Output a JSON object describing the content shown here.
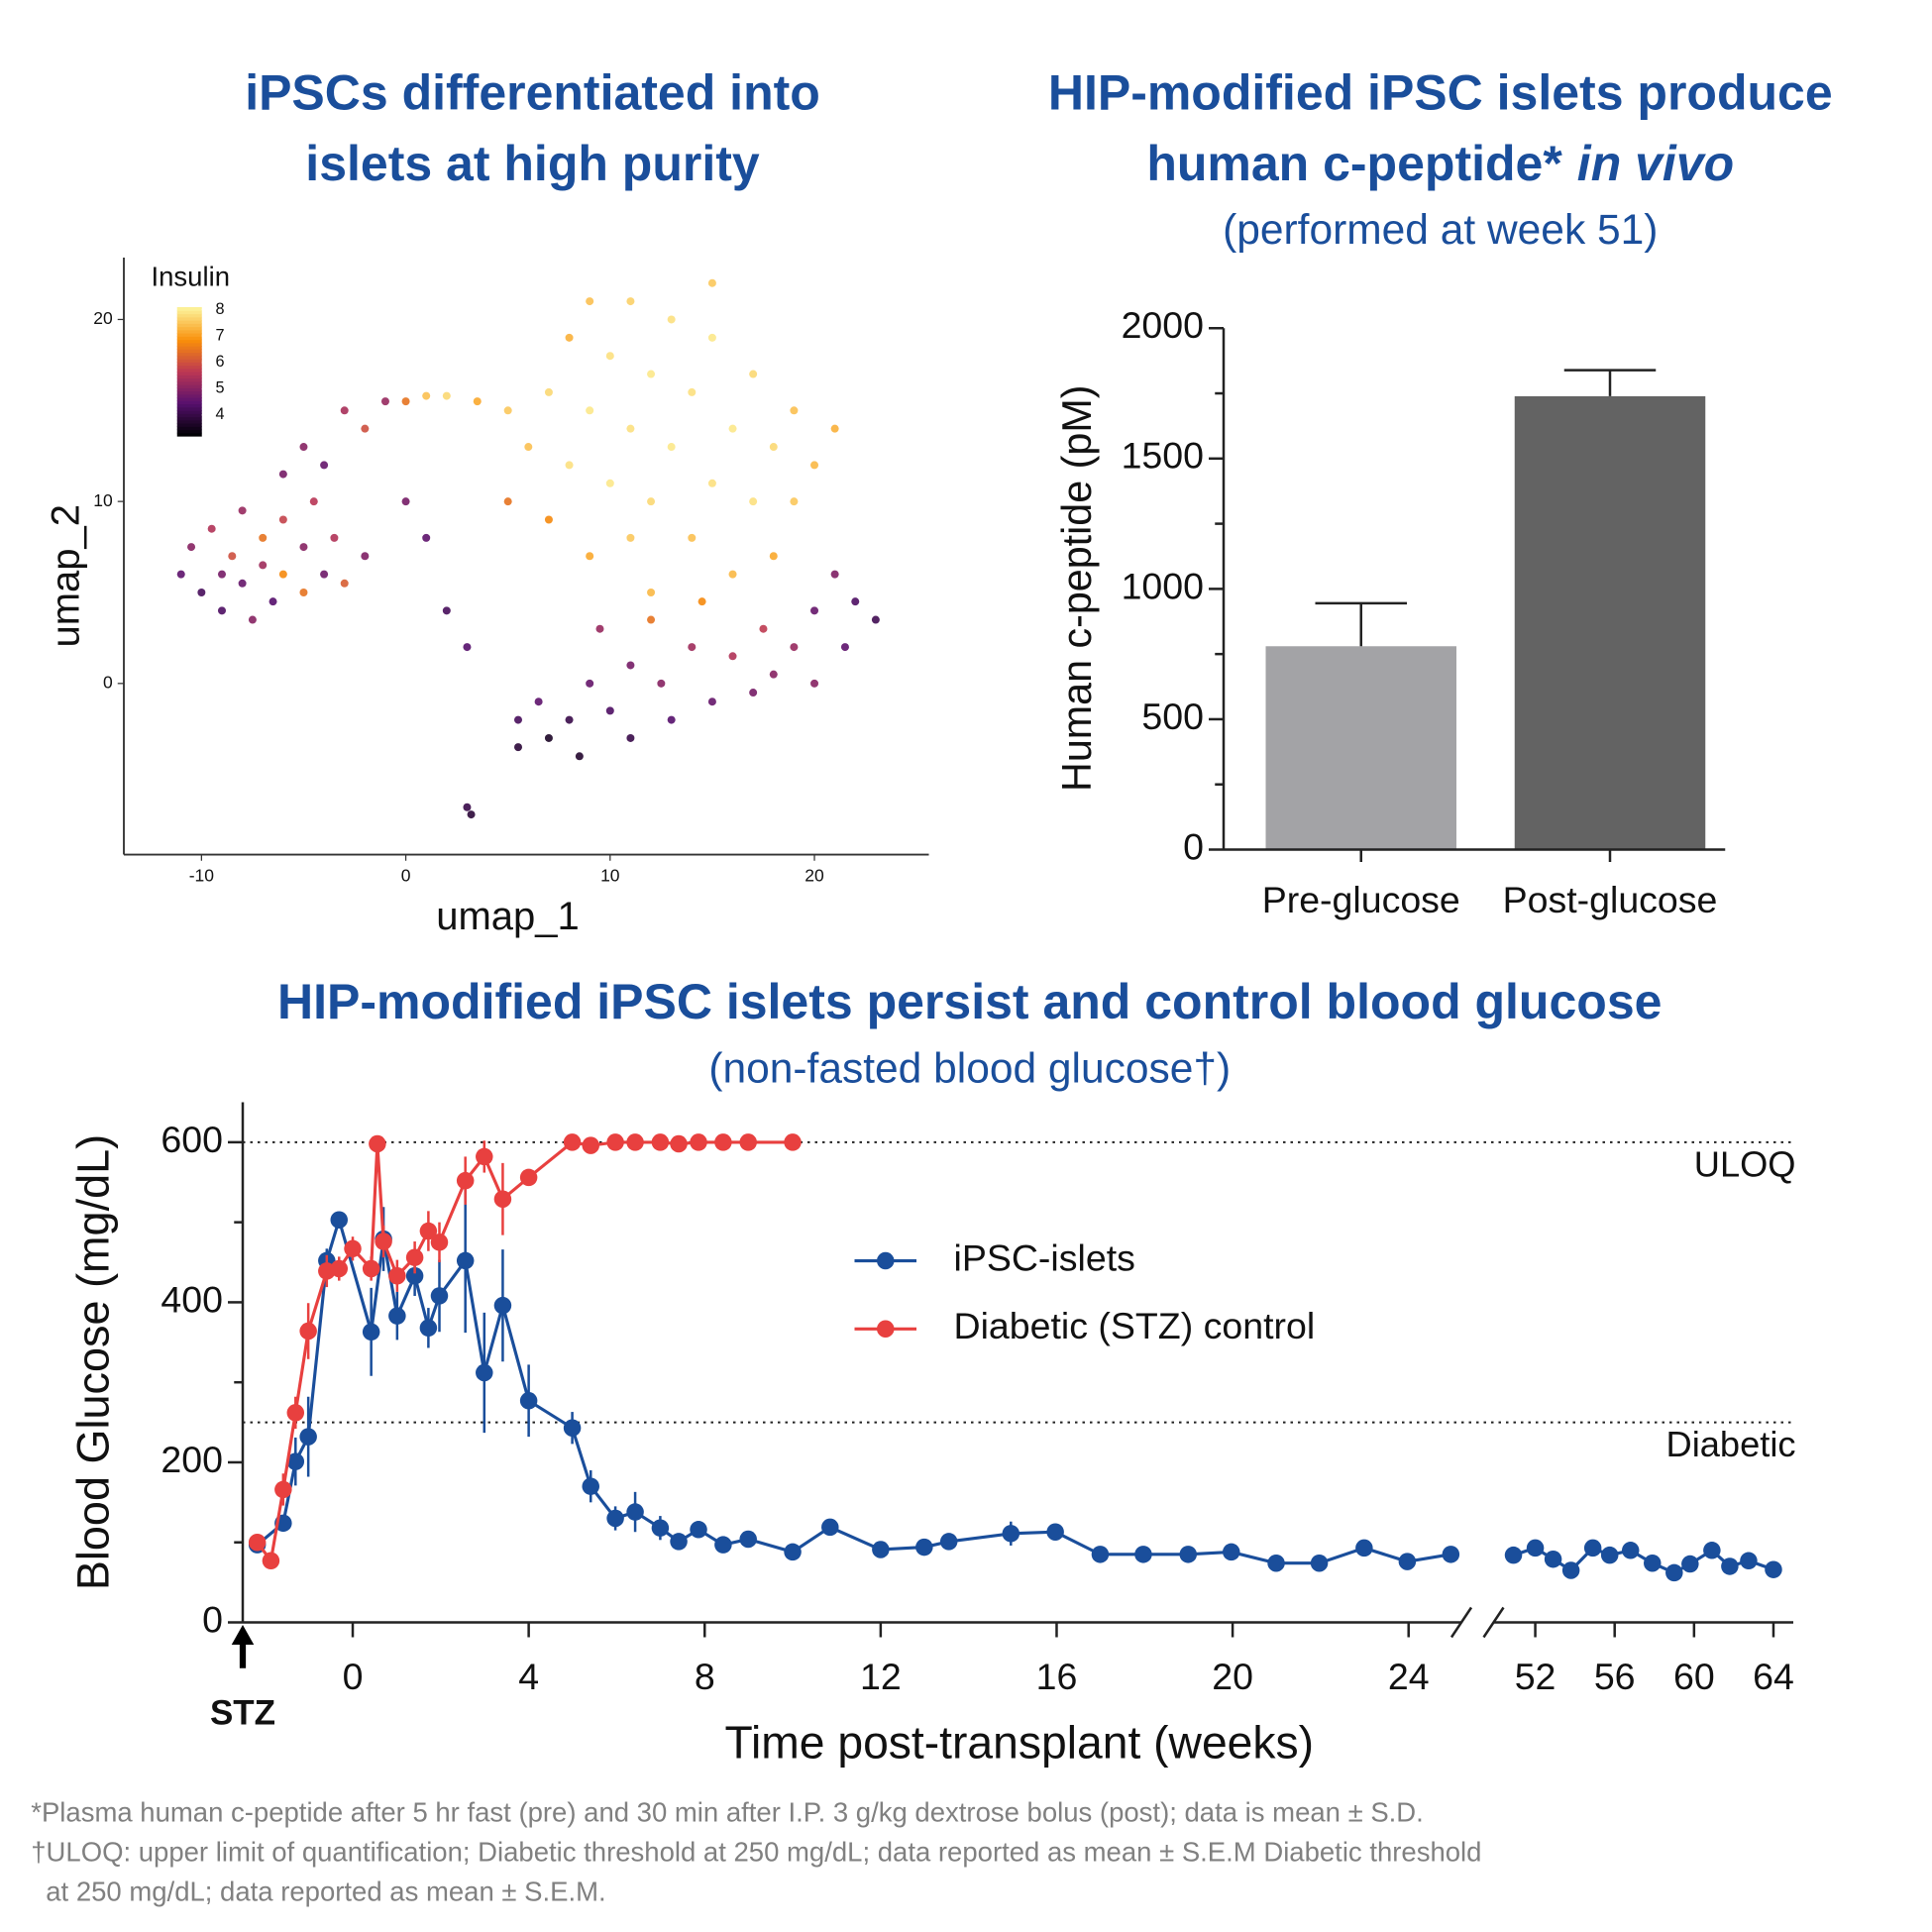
{
  "chart_data": [
    {
      "type": "scatter",
      "title": [
        "iPSCs differentiated into",
        "islets at high purity"
      ],
      "x_label": "umap_1",
      "y_label": "umap_2",
      "xlim": [
        -13.8,
        25.6
      ],
      "ylim": [
        -9.4,
        23.4
      ],
      "xticks": [
        -10,
        0,
        10,
        20
      ],
      "yticks": [
        0,
        10,
        20
      ],
      "color_label": "Insulin",
      "clim": [
        3.2,
        8.1
      ],
      "cticks": [
        4,
        5,
        6,
        7,
        8
      ],
      "colormap": "inferno",
      "x": [
        -11,
        -10.5,
        -10,
        -9.5,
        -9,
        -9,
        -8.5,
        -8,
        -8,
        -7.5,
        -7,
        -7,
        -6.5,
        -6,
        -6,
        -5,
        -5,
        -4,
        -3.5,
        -3,
        -2,
        -4.5,
        -6,
        -5,
        -4,
        -3,
        -2,
        -1,
        0,
        1,
        2,
        3.5,
        5,
        1,
        2,
        3,
        0,
        5,
        6,
        7,
        7,
        8,
        8,
        9,
        9,
        9,
        10,
        10,
        11,
        11,
        11,
        12,
        12,
        13,
        13,
        14,
        14,
        15,
        15,
        16,
        16,
        17,
        17,
        18,
        18,
        19,
        19,
        20,
        21,
        15,
        12,
        5.5,
        5.5,
        6.5,
        7,
        8,
        8.5,
        9,
        9.5,
        10,
        11,
        11,
        12,
        12.5,
        13,
        14,
        14.5,
        15,
        16,
        17,
        17.5,
        18,
        19,
        20,
        21,
        22,
        23,
        21.5,
        20,
        3,
        3.2
      ],
      "y": [
        6,
        7.5,
        5,
        8.5,
        6,
        4,
        7,
        9.5,
        5.5,
        3.5,
        8,
        6.5,
        4.5,
        9,
        6,
        7.5,
        5,
        6,
        8,
        5.5,
        7,
        10,
        11.5,
        13,
        12,
        15,
        14,
        15.5,
        15.5,
        15.8,
        15.8,
        15.5,
        15,
        8,
        4,
        2,
        10,
        10,
        13,
        16,
        9,
        19,
        12,
        21,
        15,
        7,
        18,
        11,
        21,
        14,
        8,
        17,
        10,
        20,
        13,
        16,
        8,
        19,
        11,
        14,
        6,
        17,
        10,
        13,
        7,
        15,
        10,
        12,
        14,
        22,
        5,
        -2,
        -3.5,
        -1,
        -3,
        -2,
        -4,
        0,
        3,
        -1.5,
        1,
        -3,
        3.5,
        0,
        -2,
        2,
        4.5,
        -1,
        1.5,
        -0.5,
        3,
        0.5,
        2,
        4,
        6,
        4.5,
        3.5,
        2,
        0,
        -6.8,
        -7.2
      ],
      "values": [
        4.5,
        5,
        4.2,
        5.5,
        4.8,
        4.3,
        6,
        5.2,
        4.6,
        5,
        6.5,
        5.3,
        4.4,
        5.8,
        6.8,
        5,
        6.5,
        4.7,
        5.5,
        6.2,
        4.9,
        5.6,
        4.8,
        5,
        4.6,
        5.4,
        6,
        5.2,
        6.5,
        7.5,
        7.8,
        7.2,
        7.6,
        4.5,
        4.2,
        4.4,
        4.8,
        6.5,
        7.5,
        7.8,
        6.8,
        7.3,
        7.9,
        7.5,
        8,
        7.2,
        7.9,
        8,
        7.7,
        7.9,
        7.6,
        8,
        7.8,
        7.9,
        8,
        7.9,
        7.5,
        8,
        7.9,
        8,
        7.4,
        7.8,
        7.9,
        7.8,
        7.2,
        7.5,
        7.6,
        7.4,
        7.3,
        7.6,
        7.4,
        4.2,
        3.8,
        4.5,
        3.6,
        4,
        3.7,
        4.6,
        5.2,
        4.3,
        4.8,
        4,
        6.5,
        5,
        4.4,
        5.3,
        6.8,
        4.6,
        5.5,
        4.8,
        5.7,
        5,
        5.2,
        4.6,
        4.9,
        4.3,
        4.1,
        4.5,
        5,
        4,
        3.8
      ]
    },
    {
      "type": "bar",
      "title": [
        "HIP-modified iPSC islets produce",
        [
          "human c-peptide*",
          "in vivo"
        ]
      ],
      "subtitle": "(performed at week 51)",
      "y_label": "Human c-peptide (pM)",
      "categories": [
        "Pre-glucose",
        "Post-glucose"
      ],
      "values": [
        780,
        1739
      ],
      "errors": [
        165,
        100
      ],
      "colors": [
        "#a3a3a6",
        "#636363"
      ],
      "ylim": [
        0,
        2000
      ],
      "yticks": [
        0,
        500,
        1000,
        1500,
        2000
      ],
      "yminor": [
        250,
        750,
        1250,
        1750
      ]
    },
    {
      "type": "line",
      "title": "HIP-modified iPSC islets persist and control blood glucose",
      "subtitle": "(non-fasted blood glucose†)",
      "x_label": "Time post-transplant (weeks)",
      "y_label": "Blood Glucose (mg/dL)",
      "xlim_segments": [
        [
          -2.5,
          25.2
        ],
        [
          49.9,
          65
        ]
      ],
      "xticks": [
        0,
        4,
        8,
        12,
        16,
        20,
        24,
        52,
        56,
        60,
        64
      ],
      "ylim": [
        0,
        650
      ],
      "yticks": [
        0,
        200,
        400,
        600
      ],
      "yminor": [
        100,
        300,
        500
      ],
      "reference_lines": [
        {
          "value": 600,
          "label": "ULOQ"
        },
        {
          "value": 250,
          "label": "Diabetic"
        }
      ],
      "annotation": {
        "text": "STZ",
        "x": -2.5
      },
      "series": [
        {
          "name": "iPSC-islets",
          "color": "#1a4e9b",
          "x": [
            -2.17,
            -1.58,
            -1.3,
            -1.01,
            -0.59,
            -0.31,
            0.42,
            0.7,
            1.01,
            1.41,
            1.72,
            1.97,
            2.56,
            2.99,
            3.41,
            4,
            4.99,
            5.41,
            5.97,
            6.42,
            6.99,
            7.41,
            7.86,
            8.42,
            8.99,
            10,
            10.85,
            12,
            12.99,
            13.55,
            14.96,
            15.97,
            16.99,
            17.97,
            18.99,
            19.97,
            20.99,
            21.97,
            22.99,
            23.97,
            24.96,
            null,
            50.9,
            52,
            52.9,
            53.8,
            54.9,
            55.75,
            56.8,
            57.9,
            59,
            59.8,
            60.9,
            61.8,
            62.75,
            64
          ],
          "values": [
            97,
            124,
            201,
            232,
            452,
            503,
            363,
            479,
            383,
            433,
            368,
            408,
            452,
            312,
            396,
            277,
            243,
            170,
            130,
            138,
            118,
            101,
            116,
            97,
            104,
            88,
            119,
            91,
            94,
            101,
            111,
            113,
            85,
            85,
            85,
            88,
            74,
            74,
            93,
            76,
            85,
            null,
            84,
            93,
            79,
            65,
            93,
            84,
            90,
            74,
            62,
            73,
            90,
            70,
            77,
            66
          ],
          "errors": [
            5,
            8,
            30,
            50,
            15,
            8,
            55,
            40,
            30,
            25,
            25,
            45,
            90,
            75,
            70,
            45,
            20,
            20,
            15,
            25,
            15,
            8,
            8,
            8,
            8,
            8,
            8,
            8,
            8,
            8,
            15,
            8,
            8,
            8,
            8,
            8,
            8,
            8,
            8,
            8,
            8,
            null,
            8,
            8,
            8,
            8,
            8,
            8,
            8,
            8,
            8,
            8,
            8,
            8,
            8,
            8
          ]
        },
        {
          "name": "Diabetic (STZ) control",
          "color": "#e8403f",
          "x": [
            -2.17,
            -1.86,
            -1.58,
            -1.3,
            -1.01,
            -0.59,
            -0.31,
            0,
            0.42,
            0.56,
            0.7,
            1.01,
            1.41,
            1.72,
            1.97,
            2.56,
            2.99,
            3.41,
            4,
            4.99,
            5.41,
            5.97,
            6.42,
            6.99,
            7.41,
            7.86,
            8.42,
            8.99,
            10
          ],
          "values": [
            100,
            77,
            166,
            262,
            364,
            439,
            442,
            467,
            442,
            598,
            476,
            433,
            456,
            489,
            475,
            552,
            582,
            529,
            556,
            600,
            596,
            600,
            600,
            600,
            598,
            600,
            600,
            600,
            600
          ],
          "errors": [
            5,
            5,
            20,
            20,
            35,
            20,
            15,
            15,
            15,
            5,
            20,
            20,
            20,
            25,
            25,
            30,
            20,
            45,
            5,
            5,
            5,
            5,
            5,
            5,
            5,
            5,
            5,
            5,
            5
          ]
        }
      ]
    }
  ],
  "footnotes": [
    "*Plasma human c-peptide after 5 hr fast (pre) and 30 min after I.P. 3 g/kg dextrose bolus (post); data is mean ± S.D.",
    "†ULOQ: upper limit of quantification; Diabetic threshold at 250 mg/dL; data reported as mean ± S.E.M Diabetic threshold",
    "at 250 mg/dL; data reported as mean ± S.E.M."
  ]
}
